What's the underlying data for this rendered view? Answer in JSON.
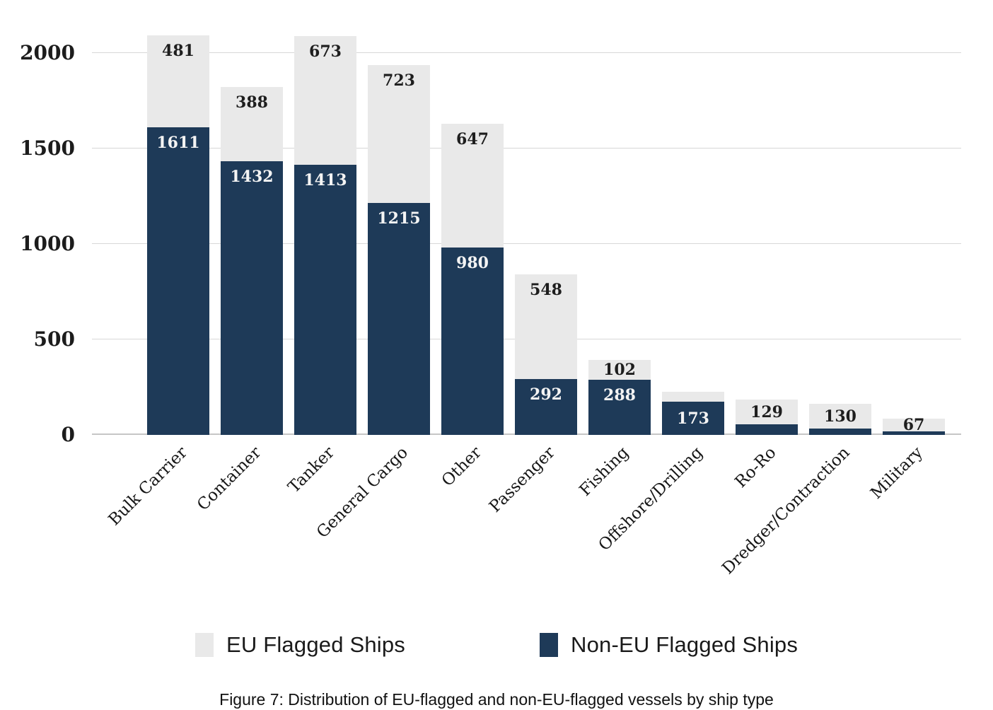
{
  "caption": "Figure 7: Distribution of EU-flagged and non-EU-flagged vessels by ship type",
  "legend": {
    "items": [
      {
        "label": "EU Flagged Ships",
        "color": "#e9e9e9"
      },
      {
        "label": "Non-EU Flagged Ships",
        "color": "#1e3a58"
      }
    ]
  },
  "chart_data": {
    "type": "bar",
    "stacked": true,
    "title": "",
    "xlabel": "",
    "ylabel": "",
    "categories": [
      "Bulk Carrier",
      "Container",
      "Tanker",
      "General Cargo",
      "Other",
      "Passenger",
      "Fishing",
      "Offshore/Drilling",
      "Ro-Ro",
      "Dredger/Contraction",
      "Military"
    ],
    "series": [
      {
        "name": "Non-EU Flagged Ships",
        "color": "#1e3a58",
        "values": [
          1611,
          1432,
          1413,
          1215,
          980,
          292,
          288,
          173,
          56,
          33,
          20
        ],
        "labels": [
          "1611",
          "1432",
          "1413",
          "1215",
          "980",
          "292",
          "288",
          "173",
          "",
          "",
          ""
        ]
      },
      {
        "name": "EU Flagged Ships",
        "color": "#e9e9e9",
        "values": [
          481,
          388,
          673,
          723,
          647,
          548,
          102,
          50,
          129,
          130,
          67
        ],
        "labels": [
          "481",
          "388",
          "673",
          "723",
          "647",
          "548",
          "102",
          "",
          "129",
          "130",
          "67"
        ]
      }
    ],
    "totals": [
      2092,
      1820,
      2086,
      1938,
      1627,
      840,
      390,
      223,
      185,
      163,
      87
    ],
    "unlabeled_segment_values_estimated": true,
    "yticks": [
      0,
      500,
      1000,
      1500,
      2000
    ],
    "ylim": [
      0,
      2130
    ],
    "grid": true,
    "legend_position": "bottom",
    "gridline_color": "#d7d7d7",
    "axis_line_color": "#c6c6c6",
    "label_color_on_dark": "#f4f4f4",
    "label_color_on_light": "#1e1e1e"
  }
}
